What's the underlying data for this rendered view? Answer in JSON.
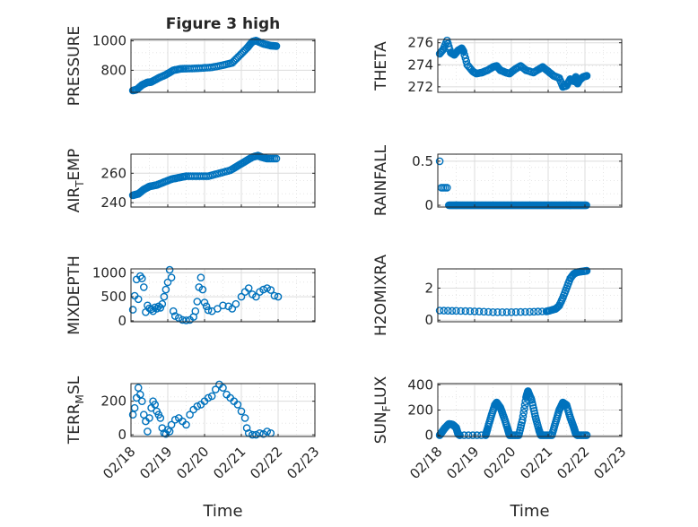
{
  "figure_title": "Figure 3 high",
  "colors": {
    "marker": "#0072BD",
    "axes": "#262626",
    "grid": "#dcdcdc"
  },
  "chart_data": [
    {
      "type": "scatter",
      "id": "pressure",
      "title": "Figure 3 high",
      "ylabel": "PRESSURE",
      "ylabel_parts": [
        {
          "t": "PRESSURE",
          "sub": false
        }
      ],
      "ylim": [
        650,
        1010
      ],
      "yticks": [
        800,
        1000
      ],
      "yticklabels": [
        "800",
        "1000"
      ],
      "grid": true,
      "xlabel": "",
      "xlim": [
        0,
        5
      ],
      "points": [
        [
          0.05,
          662
        ],
        [
          0.15,
          668
        ],
        [
          0.3,
          700
        ],
        [
          0.45,
          718
        ],
        [
          0.55,
          720
        ],
        [
          0.75,
          748
        ],
        [
          0.95,
          770
        ],
        [
          1.15,
          800
        ],
        [
          1.35,
          810
        ],
        [
          1.6,
          812
        ],
        [
          1.9,
          815
        ],
        [
          2.2,
          820
        ],
        [
          2.5,
          835
        ],
        [
          2.75,
          850
        ],
        [
          2.95,
          900
        ],
        [
          3.15,
          950
        ],
        [
          3.3,
          995
        ],
        [
          3.4,
          1002
        ],
        [
          3.6,
          980
        ],
        [
          3.8,
          968
        ],
        [
          3.95,
          965
        ]
      ],
      "density": 4
    },
    {
      "type": "scatter",
      "id": "theta",
      "ylabel": "THETA",
      "ylabel_parts": [
        {
          "t": "THETA",
          "sub": false
        }
      ],
      "ylim": [
        271.5,
        276.3
      ],
      "yticks": [
        272,
        274,
        276
      ],
      "yticklabels": [
        "272",
        "274",
        "276"
      ],
      "grid": true,
      "xlabel": "",
      "xlim": [
        0,
        5
      ],
      "points": [
        [
          0.05,
          275.0
        ],
        [
          0.15,
          275.4
        ],
        [
          0.25,
          276.2
        ],
        [
          0.35,
          275.1
        ],
        [
          0.45,
          274.9
        ],
        [
          0.55,
          275.3
        ],
        [
          0.65,
          275.5
        ],
        [
          0.7,
          275.2
        ],
        [
          0.8,
          274.0
        ],
        [
          0.95,
          273.4
        ],
        [
          1.05,
          273.2
        ],
        [
          1.2,
          273.3
        ],
        [
          1.35,
          273.5
        ],
        [
          1.5,
          273.8
        ],
        [
          1.6,
          273.9
        ],
        [
          1.7,
          273.5
        ],
        [
          1.85,
          273.3
        ],
        [
          1.95,
          273.2
        ],
        [
          2.1,
          273.6
        ],
        [
          2.25,
          273.9
        ],
        [
          2.4,
          273.5
        ],
        [
          2.6,
          273.3
        ],
        [
          2.75,
          273.6
        ],
        [
          2.85,
          273.8
        ],
        [
          3.0,
          273.4
        ],
        [
          3.15,
          273.0
        ],
        [
          3.3,
          272.8
        ],
        [
          3.4,
          272.0
        ],
        [
          3.5,
          272.1
        ],
        [
          3.6,
          272.7
        ],
        [
          3.7,
          272.5
        ],
        [
          3.75,
          272.9
        ],
        [
          3.8,
          272.3
        ],
        [
          3.85,
          272.6
        ],
        [
          3.95,
          272.9
        ],
        [
          4.05,
          273.0
        ]
      ],
      "density": 3
    },
    {
      "type": "scatter",
      "id": "air_temp",
      "ylabel": "AIR_TEMP",
      "ylabel_parts": [
        {
          "t": "AIR",
          "sub": false
        },
        {
          "t": "T",
          "sub": true
        },
        {
          "t": "EMP",
          "sub": false
        }
      ],
      "ylim": [
        237,
        273
      ],
      "yticks": [
        240,
        260
      ],
      "yticklabels": [
        "240",
        "260"
      ],
      "grid": true,
      "xlabel": "",
      "xlim": [
        0,
        5
      ],
      "points": [
        [
          0.05,
          245
        ],
        [
          0.2,
          246
        ],
        [
          0.35,
          249
        ],
        [
          0.5,
          251
        ],
        [
          0.7,
          252
        ],
        [
          0.9,
          254
        ],
        [
          1.1,
          256
        ],
        [
          1.3,
          257
        ],
        [
          1.5,
          258
        ],
        [
          1.8,
          258
        ],
        [
          2.1,
          258
        ],
        [
          2.4,
          260
        ],
        [
          2.7,
          262
        ],
        [
          2.9,
          265
        ],
        [
          3.1,
          268
        ],
        [
          3.3,
          271
        ],
        [
          3.45,
          272
        ],
        [
          3.55,
          271
        ],
        [
          3.7,
          270
        ],
        [
          3.95,
          270
        ]
      ],
      "density": 4
    },
    {
      "type": "scatter",
      "id": "rainfall",
      "ylabel": "RAINFALL",
      "ylabel_parts": [
        {
          "t": "RAINFALL",
          "sub": false
        }
      ],
      "ylim": [
        -0.02,
        0.58
      ],
      "yticks": [
        0,
        0.5
      ],
      "yticklabels": [
        "0",
        "0.5"
      ],
      "grid": true,
      "xlabel": "",
      "xlim": [
        0,
        5
      ],
      "points": [
        [
          0.05,
          0.5
        ],
        [
          0.1,
          0.2
        ],
        [
          0.15,
          0.2
        ],
        [
          0.2,
          0.2
        ],
        [
          0.25,
          0.2
        ],
        [
          0.3,
          0
        ],
        [
          4.05,
          0
        ]
      ],
      "density": 0
    },
    {
      "type": "scatter",
      "id": "mixdepth",
      "ylabel": "MIXDEPTH",
      "ylabel_parts": [
        {
          "t": "MIXDEPTH",
          "sub": false
        }
      ],
      "ylim": [
        -20,
        1080
      ],
      "yticks": [
        0,
        500,
        1000
      ],
      "yticklabels": [
        "0",
        "500",
        "1000"
      ],
      "grid": true,
      "xlabel": "",
      "xlim": [
        0,
        5
      ],
      "points": [
        [
          0.05,
          230
        ],
        [
          0.1,
          520
        ],
        [
          0.15,
          860
        ],
        [
          0.2,
          450
        ],
        [
          0.25,
          930
        ],
        [
          0.3,
          880
        ],
        [
          0.35,
          700
        ],
        [
          0.4,
          180
        ],
        [
          0.45,
          320
        ],
        [
          0.5,
          260
        ],
        [
          0.55,
          240
        ],
        [
          0.6,
          200
        ],
        [
          0.65,
          280
        ],
        [
          0.7,
          250
        ],
        [
          0.75,
          300
        ],
        [
          0.8,
          270
        ],
        [
          0.85,
          350
        ],
        [
          0.9,
          500
        ],
        [
          0.95,
          650
        ],
        [
          1.0,
          800
        ],
        [
          1.05,
          1060
        ],
        [
          1.1,
          900
        ],
        [
          1.15,
          200
        ],
        [
          1.2,
          100
        ],
        [
          1.3,
          60
        ],
        [
          1.4,
          20
        ],
        [
          1.5,
          10
        ],
        [
          1.6,
          20
        ],
        [
          1.7,
          80
        ],
        [
          1.75,
          200
        ],
        [
          1.8,
          400
        ],
        [
          1.85,
          700
        ],
        [
          1.9,
          900
        ],
        [
          1.95,
          650
        ],
        [
          2.0,
          380
        ],
        [
          2.05,
          300
        ],
        [
          2.1,
          220
        ],
        [
          2.2,
          200
        ],
        [
          2.35,
          250
        ],
        [
          2.5,
          320
        ],
        [
          2.65,
          300
        ],
        [
          2.75,
          250
        ],
        [
          2.85,
          350
        ],
        [
          3.0,
          500
        ],
        [
          3.1,
          600
        ],
        [
          3.2,
          680
        ],
        [
          3.3,
          550
        ],
        [
          3.4,
          500
        ],
        [
          3.5,
          600
        ],
        [
          3.6,
          650
        ],
        [
          3.7,
          680
        ],
        [
          3.8,
          640
        ],
        [
          3.9,
          520
        ],
        [
          4.0,
          500
        ]
      ],
      "density": 0
    },
    {
      "type": "scatter",
      "id": "h2omixra",
      "ylabel": "H2OMIXRA",
      "ylabel_parts": [
        {
          "t": "H2OMIXRA",
          "sub": false
        }
      ],
      "ylim": [
        -0.1,
        3.2
      ],
      "yticks": [
        0,
        2
      ],
      "yticklabels": [
        "0",
        "2"
      ],
      "grid": true,
      "xlabel": "",
      "xlim": [
        0,
        5
      ],
      "points": [
        [
          0.05,
          0.6
        ],
        [
          0.5,
          0.58
        ],
        [
          1.0,
          0.55
        ],
        [
          1.5,
          0.5
        ],
        [
          2.0,
          0.5
        ],
        [
          2.5,
          0.52
        ],
        [
          2.95,
          0.55
        ],
        [
          3.05,
          0.6
        ],
        [
          3.2,
          0.7
        ],
        [
          3.3,
          0.9
        ],
        [
          3.4,
          1.4
        ],
        [
          3.5,
          2.0
        ],
        [
          3.6,
          2.6
        ],
        [
          3.7,
          2.9
        ],
        [
          3.8,
          3.0
        ],
        [
          3.95,
          3.05
        ],
        [
          4.05,
          3.08
        ]
      ],
      "density": 3
    },
    {
      "type": "scatter",
      "id": "terr_msl",
      "ylabel": "TERR_MSL",
      "ylabel_parts": [
        {
          "t": "TERR",
          "sub": false
        },
        {
          "t": "M",
          "sub": true
        },
        {
          "t": "SL",
          "sub": false
        }
      ],
      "ylim": [
        -10,
        305
      ],
      "yticks": [
        0,
        200
      ],
      "yticklabels": [
        "0",
        "200"
      ],
      "grid": true,
      "xlabel": "Time",
      "xlim": [
        0,
        5
      ],
      "xticks": [
        0,
        1,
        2,
        3,
        4,
        5
      ],
      "xticklabels": [
        "02/18",
        "02/19",
        "02/20",
        "02/21",
        "02/22",
        "02/23"
      ],
      "points": [
        [
          0.05,
          120
        ],
        [
          0.1,
          160
        ],
        [
          0.15,
          220
        ],
        [
          0.2,
          280
        ],
        [
          0.25,
          240
        ],
        [
          0.3,
          200
        ],
        [
          0.35,
          120
        ],
        [
          0.4,
          80
        ],
        [
          0.45,
          20
        ],
        [
          0.5,
          100
        ],
        [
          0.55,
          160
        ],
        [
          0.6,
          200
        ],
        [
          0.65,
          180
        ],
        [
          0.7,
          140
        ],
        [
          0.75,
          120
        ],
        [
          0.8,
          100
        ],
        [
          0.85,
          40
        ],
        [
          0.9,
          10
        ],
        [
          0.95,
          5
        ],
        [
          1.0,
          30
        ],
        [
          1.05,
          20
        ],
        [
          1.1,
          60
        ],
        [
          1.2,
          90
        ],
        [
          1.3,
          100
        ],
        [
          1.4,
          80
        ],
        [
          1.5,
          60
        ],
        [
          1.6,
          120
        ],
        [
          1.7,
          150
        ],
        [
          1.8,
          170
        ],
        [
          1.9,
          180
        ],
        [
          2.0,
          200
        ],
        [
          2.1,
          220
        ],
        [
          2.2,
          230
        ],
        [
          2.3,
          270
        ],
        [
          2.4,
          300
        ],
        [
          2.5,
          280
        ],
        [
          2.6,
          240
        ],
        [
          2.7,
          220
        ],
        [
          2.8,
          200
        ],
        [
          2.9,
          180
        ],
        [
          3.0,
          140
        ],
        [
          3.1,
          100
        ],
        [
          3.15,
          40
        ],
        [
          3.2,
          10
        ],
        [
          3.3,
          0
        ],
        [
          3.4,
          0
        ],
        [
          3.5,
          10
        ],
        [
          3.6,
          5
        ],
        [
          3.7,
          20
        ],
        [
          3.8,
          10
        ]
      ],
      "density": 0
    },
    {
      "type": "scatter",
      "id": "sun_flux",
      "ylabel": "SUN_FLUX",
      "ylabel_parts": [
        {
          "t": "SUN",
          "sub": false
        },
        {
          "t": "F",
          "sub": true
        },
        {
          "t": "LUX",
          "sub": false
        }
      ],
      "ylim": [
        -10,
        410
      ],
      "yticks": [
        0,
        200,
        400
      ],
      "yticklabels": [
        "0",
        "200",
        "400"
      ],
      "grid": true,
      "xlabel": "Time",
      "xlim": [
        0,
        5
      ],
      "xticks": [
        0,
        1,
        2,
        3,
        4,
        5
      ],
      "xticklabels": [
        "02/18",
        "02/19",
        "02/20",
        "02/21",
        "02/22",
        "02/23"
      ],
      "points": [
        [
          0.05,
          0
        ],
        [
          0.1,
          20
        ],
        [
          0.15,
          40
        ],
        [
          0.2,
          60
        ],
        [
          0.3,
          90
        ],
        [
          0.4,
          85
        ],
        [
          0.5,
          60
        ],
        [
          0.55,
          10
        ],
        [
          0.6,
          0
        ],
        [
          1.3,
          0
        ],
        [
          1.35,
          50
        ],
        [
          1.45,
          150
        ],
        [
          1.55,
          240
        ],
        [
          1.6,
          260
        ],
        [
          1.7,
          220
        ],
        [
          1.8,
          140
        ],
        [
          1.9,
          50
        ],
        [
          1.95,
          0
        ],
        [
          2.2,
          0
        ],
        [
          2.3,
          120
        ],
        [
          2.4,
          300
        ],
        [
          2.45,
          350
        ],
        [
          2.55,
          280
        ],
        [
          2.65,
          150
        ],
        [
          2.75,
          40
        ],
        [
          2.8,
          0
        ],
        [
          3.1,
          0
        ],
        [
          3.2,
          100
        ],
        [
          3.3,
          200
        ],
        [
          3.4,
          260
        ],
        [
          3.5,
          240
        ],
        [
          3.6,
          140
        ],
        [
          3.7,
          60
        ],
        [
          3.75,
          10
        ],
        [
          3.8,
          0
        ],
        [
          4.05,
          0
        ]
      ],
      "density": 5
    }
  ]
}
